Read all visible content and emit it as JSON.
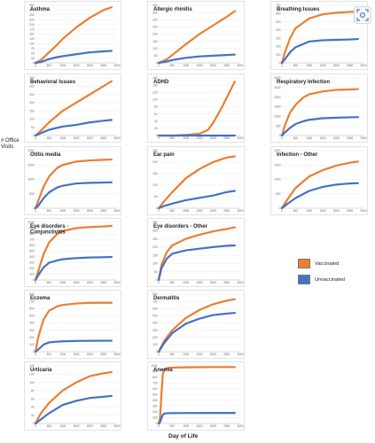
{
  "ylabel": "# Office Visits",
  "xlabel": "Day of Life",
  "legend": {
    "items": [
      {
        "label": "Vaccinated",
        "color": "#ED7D31"
      },
      {
        "label": "Unvaccinated",
        "color": "#4472C4"
      }
    ]
  },
  "colors": {
    "vaccinated": "#ED7D31",
    "unvaccinated": "#4472C4"
  },
  "chart_data": [
    {
      "type": "line",
      "title": "Asthma",
      "xlim": [
        0,
        3000
      ],
      "ylim": [
        0,
        300
      ],
      "yticks": [
        "0",
        "25",
        "50",
        "75",
        "100",
        "125",
        "150",
        "175",
        "200",
        "225",
        "250",
        "275",
        "300"
      ],
      "xticks": [
        "0",
        "500",
        "1000",
        "1500",
        "2000",
        "2500",
        "3000"
      ],
      "series": [
        {
          "name": "Vaccinated",
          "x": [
            0,
            200,
            500,
            800,
            1000,
            1500,
            2000,
            2500,
            2800
          ],
          "values": [
            0,
            15,
            55,
            95,
            125,
            185,
            235,
            275,
            290
          ]
        },
        {
          "name": "Unvaccinated",
          "x": [
            0,
            200,
            500,
            800,
            1000,
            1500,
            2000,
            2500,
            2800
          ],
          "values": [
            0,
            5,
            20,
            30,
            35,
            45,
            55,
            60,
            63
          ]
        }
      ]
    },
    {
      "type": "line",
      "title": "Allergic rhinitis",
      "xlim": [
        0,
        3000
      ],
      "ylim": [
        0,
        400
      ],
      "yticks": [
        "0",
        "50",
        "100",
        "150",
        "200",
        "250",
        "300",
        "350",
        "400"
      ],
      "xticks": [
        "0",
        "500",
        "1000",
        "1500",
        "2000",
        "2500",
        "3000"
      ],
      "series": [
        {
          "name": "Vaccinated",
          "x": [
            0,
            300,
            500,
            1000,
            1500,
            2000,
            2500,
            2800
          ],
          "values": [
            0,
            25,
            55,
            130,
            200,
            260,
            320,
            360
          ]
        },
        {
          "name": "Unvaccinated",
          "x": [
            0,
            300,
            500,
            1000,
            1500,
            2000,
            2500,
            2800
          ],
          "values": [
            0,
            10,
            20,
            35,
            45,
            50,
            55,
            58
          ]
        }
      ]
    },
    {
      "type": "line",
      "title": "Breathing Issues",
      "xlim": [
        0,
        3000
      ],
      "ylim": [
        0,
        700
      ],
      "yticks": [
        "0",
        "100",
        "200",
        "300",
        "400",
        "500",
        "600",
        "700"
      ],
      "xticks": [
        "0",
        "500",
        "1000",
        "1500",
        "2000",
        "2500",
        "3000"
      ],
      "series": [
        {
          "name": "Vaccinated",
          "x": [
            0,
            100,
            300,
            500,
            1000,
            1500,
            2000,
            2500,
            2800
          ],
          "values": [
            0,
            120,
            300,
            420,
            540,
            590,
            610,
            620,
            622
          ]
        },
        {
          "name": "Unvaccinated",
          "x": [
            0,
            100,
            300,
            500,
            1000,
            1500,
            2000,
            2500,
            2800
          ],
          "values": [
            0,
            40,
            130,
            190,
            260,
            275,
            280,
            285,
            290
          ]
        }
      ]
    },
    {
      "type": "line",
      "title": "Behavioral Issues",
      "xlim": [
        0,
        3000
      ],
      "ylim": [
        0,
        350
      ],
      "yticks": [
        "0",
        "50",
        "100",
        "150",
        "200",
        "250",
        "300",
        "350"
      ],
      "xticks": [
        "0",
        "500",
        "1000",
        "1500",
        "2000",
        "2500",
        "3000"
      ],
      "series": [
        {
          "name": "Vaccinated",
          "x": [
            0,
            200,
            500,
            1000,
            1500,
            2000,
            2500,
            2800
          ],
          "values": [
            0,
            30,
            80,
            150,
            200,
            250,
            300,
            330
          ]
        },
        {
          "name": "Unvaccinated",
          "x": [
            0,
            200,
            500,
            1000,
            1500,
            2000,
            2500,
            2800
          ],
          "values": [
            0,
            15,
            35,
            55,
            65,
            80,
            90,
            95
          ]
        }
      ]
    },
    {
      "type": "line",
      "title": "ADHD",
      "xlim": [
        0,
        3000
      ],
      "ylim": [
        0,
        160
      ],
      "yticks": [
        "0",
        "20",
        "40",
        "60",
        "80",
        "100",
        "120",
        "140",
        "160"
      ],
      "xticks": [
        "0",
        "500",
        "1000",
        "1500",
        "2000",
        "2500",
        "3000"
      ],
      "series": [
        {
          "name": "Vaccinated",
          "x": [
            0,
            500,
            1000,
            1500,
            1800,
            2000,
            2300,
            2600,
            2800
          ],
          "values": [
            0,
            0,
            2,
            5,
            15,
            35,
            75,
            120,
            150
          ]
        },
        {
          "name": "Unvaccinated",
          "x": [
            0,
            1000,
            2000,
            2800
          ],
          "values": [
            0,
            0,
            0,
            0
          ]
        }
      ]
    },
    {
      "type": "line",
      "title": "Respiratory Infection",
      "xlim": [
        0,
        3000
      ],
      "ylim": [
        0,
        3000
      ],
      "yticks": [
        "0",
        "500",
        "1000",
        "1500",
        "2000",
        "2500",
        "3000"
      ],
      "xticks": [
        "0",
        "500",
        "1000",
        "1500",
        "2000",
        "2500",
        "3000"
      ],
      "series": [
        {
          "name": "Vaccinated",
          "x": [
            0,
            100,
            300,
            500,
            800,
            1000,
            1500,
            2000,
            2500,
            2800
          ],
          "values": [
            0,
            500,
            1200,
            1600,
            2000,
            2150,
            2300,
            2380,
            2400,
            2420
          ]
        },
        {
          "name": "Unvaccinated",
          "x": [
            0,
            100,
            300,
            500,
            800,
            1000,
            1500,
            2000,
            2500,
            2800
          ],
          "values": [
            0,
            150,
            400,
            600,
            750,
            820,
            900,
            930,
            950,
            960
          ]
        }
      ]
    },
    {
      "type": "line",
      "title": "Otitis media",
      "xlim": [
        0,
        3000
      ],
      "ylim": [
        0,
        2000
      ],
      "yticks": [
        "0",
        "500",
        "1000",
        "1500",
        "2000"
      ],
      "xticks": [
        "0",
        "500",
        "1000",
        "1500",
        "2000",
        "2500",
        "3000"
      ],
      "series": [
        {
          "name": "Vaccinated",
          "x": [
            0,
            100,
            300,
            500,
            800,
            1000,
            1500,
            2000,
            2500,
            2800
          ],
          "values": [
            0,
            250,
            750,
            1100,
            1400,
            1500,
            1620,
            1660,
            1680,
            1690
          ]
        },
        {
          "name": "Unvaccinated",
          "x": [
            0,
            100,
            300,
            500,
            800,
            1000,
            1500,
            2000,
            2500,
            2800
          ],
          "values": [
            0,
            80,
            350,
            550,
            720,
            780,
            860,
            880,
            890,
            900
          ]
        }
      ]
    },
    {
      "type": "line",
      "title": "Ear pain",
      "xlim": [
        0,
        3000
      ],
      "ylim": [
        0,
        250
      ],
      "yticks": [
        "0",
        "50",
        "100",
        "150",
        "200",
        "250"
      ],
      "xticks": [
        "0",
        "500",
        "1000",
        "1500",
        "2000",
        "2500",
        "3000"
      ],
      "series": [
        {
          "name": "Vaccinated",
          "x": [
            0,
            200,
            500,
            1000,
            1500,
            2000,
            2500,
            2800
          ],
          "values": [
            0,
            30,
            70,
            130,
            170,
            200,
            220,
            225
          ]
        },
        {
          "name": "Unvaccinated",
          "x": [
            0,
            200,
            500,
            1000,
            1500,
            2000,
            2500,
            2800
          ],
          "values": [
            0,
            10,
            20,
            35,
            45,
            55,
            70,
            75
          ]
        }
      ]
    },
    {
      "type": "line",
      "title": "Infection - Other",
      "xlim": [
        0,
        3000
      ],
      "ylim": [
        0,
        2000
      ],
      "yticks": [
        "0",
        "500",
        "1000",
        "1500",
        "2000"
      ],
      "xticks": [
        "0",
        "500",
        "1000",
        "1500",
        "2000",
        "2500",
        "3000"
      ],
      "series": [
        {
          "name": "Vaccinated",
          "x": [
            0,
            200,
            500,
            1000,
            1500,
            2000,
            2500,
            2800
          ],
          "values": [
            0,
            300,
            700,
            1100,
            1320,
            1480,
            1580,
            1620
          ]
        },
        {
          "name": "Unvaccinated",
          "x": [
            0,
            200,
            500,
            1000,
            1500,
            2000,
            2500,
            2800
          ],
          "values": [
            0,
            150,
            350,
            600,
            740,
            820,
            860,
            870
          ]
        }
      ]
    },
    {
      "type": "line",
      "title": "Eye disorders - Conjunctivitis",
      "xlim": [
        0,
        3000
      ],
      "ylim": [
        0,
        1000
      ],
      "yticks": [
        "0",
        "100",
        "200",
        "300",
        "400",
        "500",
        "600",
        "700",
        "800",
        "900",
        "1000"
      ],
      "xticks": [
        "0",
        "500",
        "1000",
        "1500",
        "2000",
        "2500",
        "3000"
      ],
      "series": [
        {
          "name": "Vaccinated",
          "x": [
            0,
            100,
            300,
            500,
            800,
            1000,
            1500,
            2000,
            2500,
            2800
          ],
          "values": [
            0,
            150,
            450,
            650,
            800,
            850,
            900,
            920,
            930,
            940
          ]
        },
        {
          "name": "Unvaccinated",
          "x": [
            0,
            100,
            300,
            500,
            800,
            1000,
            1500,
            2000,
            2500,
            2800
          ],
          "values": [
            0,
            80,
            220,
            300,
            340,
            360,
            380,
            390,
            395,
            400
          ]
        }
      ]
    },
    {
      "type": "line",
      "title": "Eye disorders - Other",
      "xlim": [
        0,
        3000
      ],
      "ylim": [
        0,
        350
      ],
      "yticks": [
        "0",
        "50",
        "100",
        "150",
        "200",
        "250",
        "300",
        "350"
      ],
      "xticks": [
        "0",
        "500",
        "1000",
        "1500",
        "2000",
        "2500",
        "3000"
      ],
      "series": [
        {
          "name": "Vaccinated",
          "x": [
            0,
            100,
            300,
            500,
            1000,
            1500,
            2000,
            2500,
            2800
          ],
          "values": [
            0,
            90,
            170,
            210,
            250,
            275,
            295,
            310,
            320
          ]
        },
        {
          "name": "Unvaccinated",
          "x": [
            0,
            100,
            300,
            500,
            1000,
            1500,
            2000,
            2500,
            2800
          ],
          "values": [
            0,
            70,
            130,
            160,
            180,
            190,
            200,
            208,
            210
          ]
        }
      ]
    },
    {
      "type": "line",
      "title": "Eczema",
      "xlim": [
        0,
        3000
      ],
      "ylim": [
        0,
        800
      ],
      "yticks": [
        "0",
        "100",
        "200",
        "300",
        "400",
        "500",
        "600",
        "700",
        "800"
      ],
      "xticks": [
        "0",
        "500",
        "1000",
        "1500",
        "2000",
        "2500",
        "3000"
      ],
      "series": [
        {
          "name": "Vaccinated",
          "x": [
            0,
            100,
            300,
            500,
            800,
            1000,
            1500,
            2000,
            2500,
            2800
          ],
          "values": [
            0,
            200,
            450,
            570,
            630,
            650,
            670,
            680,
            680,
            680
          ]
        },
        {
          "name": "Unvaccinated",
          "x": [
            0,
            100,
            300,
            500,
            800,
            1000,
            1500,
            2000,
            2500,
            2800
          ],
          "values": [
            0,
            30,
            100,
            130,
            140,
            145,
            150,
            152,
            153,
            153
          ]
        }
      ]
    },
    {
      "type": "line",
      "title": "Dermatitis",
      "xlim": [
        0,
        3000
      ],
      "ylim": [
        0,
        800
      ],
      "yticks": [
        "0",
        "100",
        "200",
        "300",
        "400",
        "500",
        "600",
        "700",
        "800"
      ],
      "xticks": [
        "0",
        "500",
        "1000",
        "1500",
        "2000",
        "2500",
        "3000"
      ],
      "series": [
        {
          "name": "Vaccinated",
          "x": [
            0,
            200,
            500,
            1000,
            1500,
            2000,
            2500,
            2800
          ],
          "values": [
            0,
            150,
            300,
            470,
            580,
            660,
            710,
            730
          ]
        },
        {
          "name": "Unvaccinated",
          "x": [
            0,
            200,
            500,
            1000,
            1500,
            2000,
            2500,
            2800
          ],
          "values": [
            0,
            120,
            260,
            390,
            460,
            510,
            530,
            540
          ]
        }
      ]
    },
    {
      "type": "line",
      "title": "Urticaria",
      "xlim": [
        0,
        3000
      ],
      "ylim": [
        0,
        140
      ],
      "yticks": [
        "0",
        "20",
        "40",
        "60",
        "80",
        "100",
        "120",
        "140"
      ],
      "xticks": [
        "0",
        "500",
        "1000",
        "1500",
        "2000",
        "2500",
        "3000"
      ],
      "series": [
        {
          "name": "Vaccinated",
          "x": [
            0,
            200,
            500,
            1000,
            1500,
            2000,
            2500,
            2800
          ],
          "values": [
            0,
            25,
            50,
            80,
            100,
            115,
            122,
            125
          ]
        },
        {
          "name": "Unvaccinated",
          "x": [
            0,
            200,
            500,
            1000,
            1500,
            2000,
            2500,
            2800
          ],
          "values": [
            0,
            10,
            25,
            45,
            55,
            62,
            65,
            67
          ]
        }
      ]
    },
    {
      "type": "line",
      "title": "Anemia",
      "xlim": [
        0,
        3000
      ],
      "ylim": [
        0,
        1000
      ],
      "yticks": [
        "0",
        "100",
        "200",
        "300",
        "400",
        "500",
        "600",
        "700",
        "800",
        "900",
        "1000"
      ],
      "xticks": [
        "0",
        "500",
        "1000",
        "1500",
        "2000",
        "2500",
        "3000"
      ],
      "series": [
        {
          "name": "Vaccinated",
          "x": [
            0,
            50,
            100,
            150,
            200,
            300,
            500,
            1000,
            2000,
            2800
          ],
          "values": [
            0,
            100,
            500,
            850,
            930,
            960,
            970,
            975,
            980,
            980
          ]
        },
        {
          "name": "Unvaccinated",
          "x": [
            0,
            50,
            100,
            150,
            200,
            300,
            500,
            1000,
            2000,
            2800
          ],
          "values": [
            0,
            20,
            90,
            150,
            170,
            178,
            180,
            182,
            183,
            183
          ]
        }
      ]
    }
  ]
}
